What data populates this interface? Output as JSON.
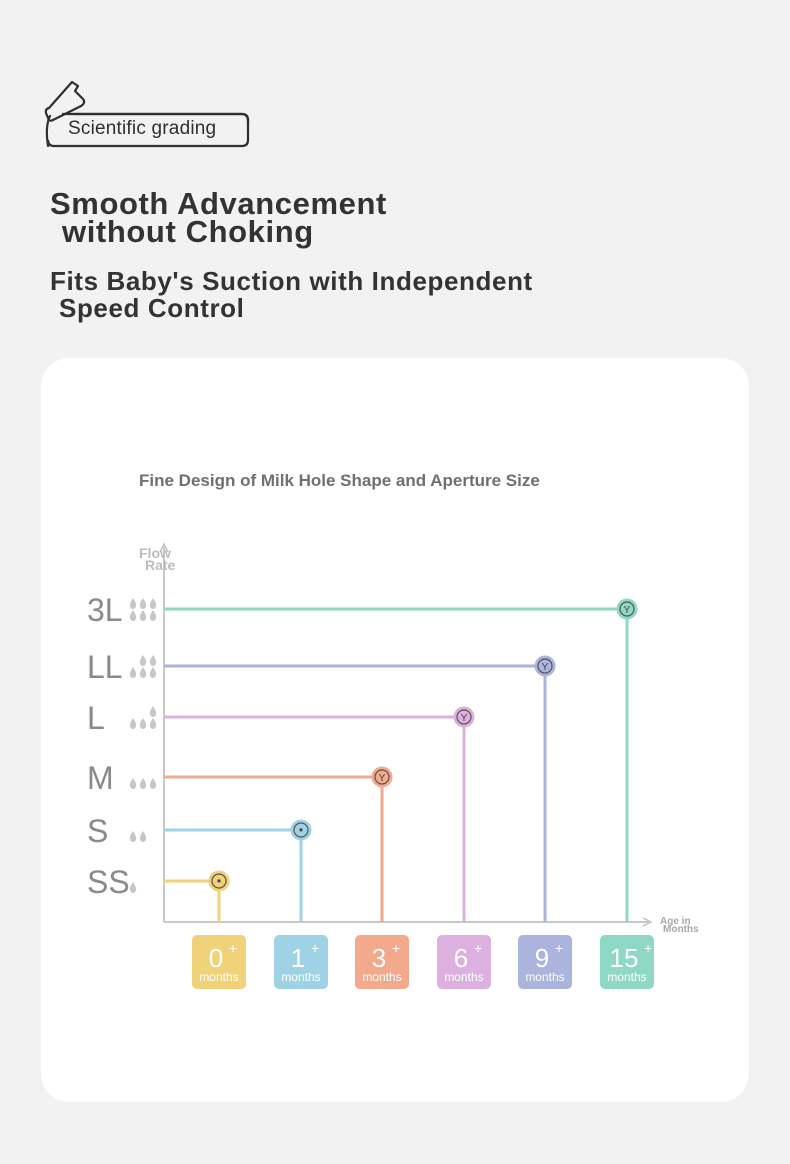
{
  "badge": {
    "text": "Scientific grading",
    "icon": "baby-bottle-icon"
  },
  "headline": {
    "line1": "Smooth Advancement",
    "line2": "without Choking"
  },
  "subheadline": {
    "line1": "Fits Baby's Suction with Independent",
    "line2": "Speed Control"
  },
  "chart_data": {
    "type": "line",
    "title": "Fine Design of Milk Hole Shape and Aperture Size",
    "ylabel": [
      "Flow",
      "Rate"
    ],
    "xlabel": [
      "Age in",
      "Months"
    ],
    "grid": false,
    "categories_y": [
      "SS",
      "S",
      "M",
      "L",
      "LL",
      "3L"
    ],
    "categories_x": [
      "0",
      "1",
      "3",
      "6",
      "9",
      "15"
    ],
    "x_unit": "months",
    "series": [
      {
        "y": "SS",
        "x_start": "0",
        "hole": "dot",
        "drops": 1,
        "color": "#f0d27a"
      },
      {
        "y": "S",
        "x_start": "1",
        "hole": "dot",
        "drops": 2,
        "color": "#9ed2e4"
      },
      {
        "y": "M",
        "x_start": "3",
        "hole": "Y",
        "drops": 3,
        "color": "#f2a98c"
      },
      {
        "y": "L",
        "x_start": "6",
        "hole": "Y",
        "drops": 4,
        "color": "#dcb1e0"
      },
      {
        "y": "LL",
        "x_start": "9",
        "hole": "Y",
        "drops": 5,
        "color": "#aab4dc"
      },
      {
        "y": "3L",
        "x_start": "15",
        "hole": "Y",
        "drops": 6,
        "color": "#8ed8c4"
      }
    ],
    "hole_labels": {
      "dot": "•",
      "Y": "Y"
    }
  }
}
